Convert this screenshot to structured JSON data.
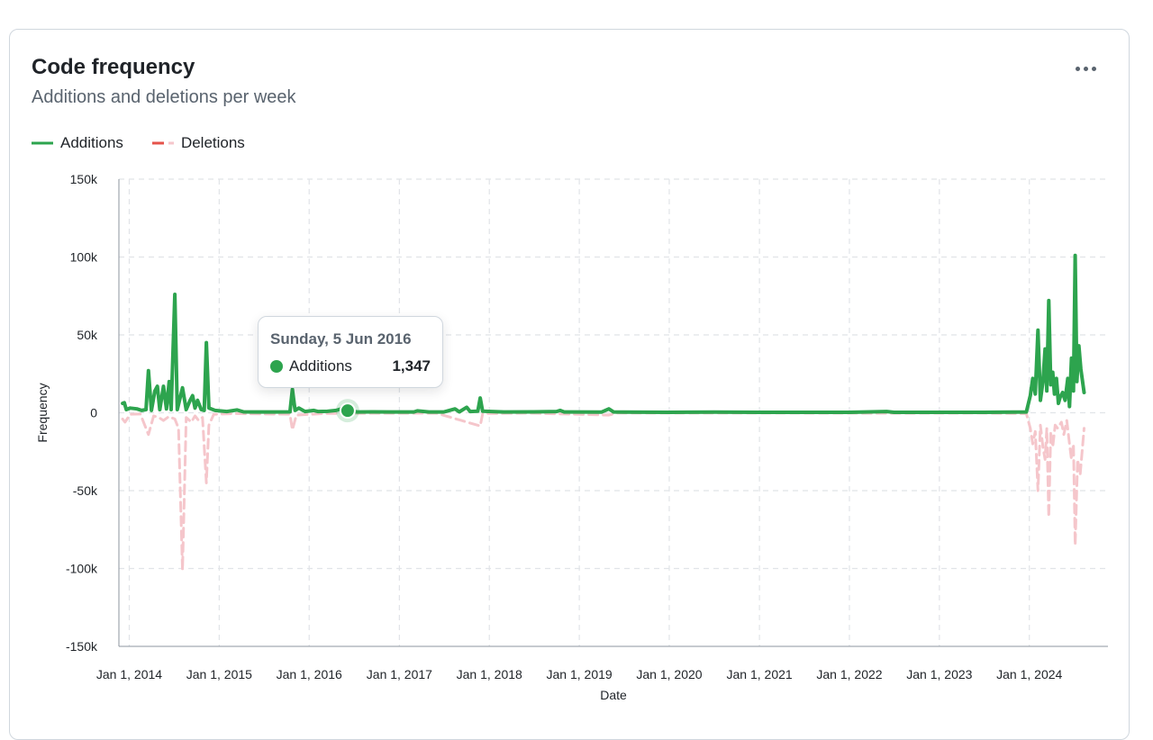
{
  "card": {
    "title": "Code frequency",
    "subtitle": "Additions and deletions per week"
  },
  "menu": {
    "icon": "kebab-horizontal-icon"
  },
  "legend": {
    "additions": "Additions",
    "deletions": "Deletions"
  },
  "colors": {
    "additions": "#2da44e",
    "deletions": "#f5c6cb",
    "deletions_legend": "#e5534b",
    "grid": "#e1e4e8",
    "axis_text": "#1f2328"
  },
  "tooltip": {
    "date": "Sunday, 5 Jun 2016",
    "series": "Additions",
    "value": "1,347"
  },
  "chart_data": {
    "type": "line",
    "xlabel": "Date",
    "ylabel": "Frequency",
    "ylim": [
      -150000,
      150000
    ],
    "xlim": [
      "2013-11-20",
      "2024-11-15"
    ],
    "yticks": [
      150000,
      100000,
      50000,
      0,
      -50000,
      -100000,
      -150000
    ],
    "ytick_labels": [
      "150k",
      "100k",
      "50k",
      "0",
      "-50k",
      "-100k",
      "-150k"
    ],
    "xticks": [
      "2014-01-01",
      "2015-01-01",
      "2016-01-01",
      "2017-01-01",
      "2018-01-01",
      "2019-01-01",
      "2020-01-01",
      "2021-01-01",
      "2022-01-01",
      "2023-01-01",
      "2024-01-01"
    ],
    "xtick_labels": [
      "Jan 1, 2014",
      "Jan 1, 2015",
      "Jan 1, 2016",
      "Jan 1, 2017",
      "Jan 1, 2018",
      "Jan 1, 2019",
      "Jan 1, 2020",
      "Jan 1, 2021",
      "Jan 1, 2022",
      "Jan 1, 2023",
      "Jan 1, 2024"
    ],
    "grid": true,
    "legend_position": "top-left",
    "highlight": {
      "date": "2016-06-05",
      "value": 1347,
      "series": "Additions"
    },
    "series": [
      {
        "name": "Additions",
        "style": "solid",
        "points": [
          [
            "2013-12-05",
            6000
          ],
          [
            "2013-12-12",
            6500
          ],
          [
            "2013-12-20",
            2000
          ],
          [
            "2014-01-05",
            3000
          ],
          [
            "2014-02-01",
            2500
          ],
          [
            "2014-02-20",
            1500
          ],
          [
            "2014-03-10",
            2000
          ],
          [
            "2014-03-20",
            27000
          ],
          [
            "2014-04-01",
            1500
          ],
          [
            "2014-04-15",
            14000
          ],
          [
            "2014-04-25",
            17000
          ],
          [
            "2014-05-05",
            2000
          ],
          [
            "2014-05-20",
            17000
          ],
          [
            "2014-06-01",
            2500
          ],
          [
            "2014-06-12",
            20000
          ],
          [
            "2014-06-20",
            2000
          ],
          [
            "2014-07-05",
            76000
          ],
          [
            "2014-07-15",
            2000
          ],
          [
            "2014-08-05",
            16000
          ],
          [
            "2014-08-20",
            2000
          ],
          [
            "2014-09-05",
            8000
          ],
          [
            "2014-09-15",
            11000
          ],
          [
            "2014-09-25",
            3000
          ],
          [
            "2014-10-05",
            8000
          ],
          [
            "2014-10-20",
            2000
          ],
          [
            "2014-11-01",
            1500
          ],
          [
            "2014-11-10",
            45000
          ],
          [
            "2014-11-20",
            3000
          ],
          [
            "2014-12-15",
            1500
          ],
          [
            "2015-02-01",
            800
          ],
          [
            "2015-03-15",
            1800
          ],
          [
            "2015-04-10",
            600
          ],
          [
            "2015-06-01",
            500
          ],
          [
            "2015-08-15",
            500
          ],
          [
            "2015-10-15",
            600
          ],
          [
            "2015-10-25",
            15000
          ],
          [
            "2015-11-05",
            1500
          ],
          [
            "2015-11-20",
            3000
          ],
          [
            "2015-12-15",
            800
          ],
          [
            "2016-01-20",
            1500
          ],
          [
            "2016-02-05",
            800
          ],
          [
            "2016-03-15",
            900
          ],
          [
            "2016-04-20",
            1500
          ],
          [
            "2016-05-10",
            2500
          ],
          [
            "2016-06-05",
            1347
          ],
          [
            "2016-07-15",
            500
          ],
          [
            "2016-09-15",
            600
          ],
          [
            "2016-12-01",
            500
          ],
          [
            "2017-03-01",
            500
          ],
          [
            "2017-03-15",
            1200
          ],
          [
            "2017-05-01",
            500
          ],
          [
            "2017-07-01",
            500
          ],
          [
            "2017-08-15",
            2500
          ],
          [
            "2017-09-01",
            600
          ],
          [
            "2017-10-01",
            3500
          ],
          [
            "2017-10-15",
            800
          ],
          [
            "2017-11-15",
            1000
          ],
          [
            "2017-11-25",
            9500
          ],
          [
            "2017-12-05",
            1000
          ],
          [
            "2018-03-01",
            500
          ],
          [
            "2018-07-01",
            600
          ],
          [
            "2018-10-01",
            800
          ],
          [
            "2018-10-15",
            1500
          ],
          [
            "2018-11-01",
            500
          ],
          [
            "2019-04-01",
            400
          ],
          [
            "2019-05-01",
            2500
          ],
          [
            "2019-05-20",
            500
          ],
          [
            "2019-07-01",
            400
          ],
          [
            "2020-01-01",
            300
          ],
          [
            "2020-07-01",
            400
          ],
          [
            "2021-01-01",
            300
          ],
          [
            "2021-07-01",
            300
          ],
          [
            "2022-01-01",
            300
          ],
          [
            "2022-06-01",
            800
          ],
          [
            "2022-07-01",
            300
          ],
          [
            "2023-01-01",
            300
          ],
          [
            "2023-07-01",
            300
          ],
          [
            "2023-12-20",
            500
          ],
          [
            "2024-01-05",
            11000
          ],
          [
            "2024-01-15",
            22000
          ],
          [
            "2024-01-25",
            12000
          ],
          [
            "2024-02-05",
            53000
          ],
          [
            "2024-02-15",
            8000
          ],
          [
            "2024-02-25",
            20000
          ],
          [
            "2024-03-05",
            41000
          ],
          [
            "2024-03-12",
            14000
          ],
          [
            "2024-03-20",
            72000
          ],
          [
            "2024-03-28",
            18000
          ],
          [
            "2024-04-05",
            26000
          ],
          [
            "2024-04-12",
            12000
          ],
          [
            "2024-04-20",
            22000
          ],
          [
            "2024-04-28",
            6000
          ],
          [
            "2024-05-05",
            10000
          ],
          [
            "2024-05-15",
            13000
          ],
          [
            "2024-05-25",
            8000
          ],
          [
            "2024-06-05",
            22000
          ],
          [
            "2024-06-12",
            4000
          ],
          [
            "2024-06-20",
            35000
          ],
          [
            "2024-06-28",
            14000
          ],
          [
            "2024-07-05",
            101000
          ],
          [
            "2024-07-12",
            20000
          ],
          [
            "2024-07-20",
            43000
          ],
          [
            "2024-07-28",
            28000
          ],
          [
            "2024-08-10",
            13000
          ]
        ]
      },
      {
        "name": "Deletions",
        "style": "dashed",
        "points": [
          [
            "2013-12-05",
            -4000
          ],
          [
            "2013-12-15",
            -6000
          ],
          [
            "2014-01-05",
            -1000
          ],
          [
            "2014-02-15",
            -800
          ],
          [
            "2014-03-20",
            -14000
          ],
          [
            "2014-04-10",
            -2000
          ],
          [
            "2014-05-01",
            -3000
          ],
          [
            "2014-05-20",
            -5000
          ],
          [
            "2014-06-10",
            -2500
          ],
          [
            "2014-07-05",
            -4000
          ],
          [
            "2014-07-20",
            -10000
          ],
          [
            "2014-08-05",
            -101000
          ],
          [
            "2014-08-20",
            -3000
          ],
          [
            "2014-09-10",
            -6000
          ],
          [
            "2014-09-25",
            -2000
          ],
          [
            "2014-10-10",
            -5000
          ],
          [
            "2014-10-25",
            -3000
          ],
          [
            "2014-11-10",
            -45000
          ],
          [
            "2014-11-20",
            -8000
          ],
          [
            "2014-12-10",
            -1000
          ],
          [
            "2015-03-01",
            -500
          ],
          [
            "2015-10-15",
            -1000
          ],
          [
            "2015-10-25",
            -11000
          ],
          [
            "2015-11-10",
            -1500
          ],
          [
            "2016-03-01",
            -500
          ],
          [
            "2016-06-05",
            -400
          ],
          [
            "2016-10-01",
            -300
          ],
          [
            "2017-06-01",
            -300
          ],
          [
            "2017-11-25",
            -8500
          ],
          [
            "2017-12-05",
            -600
          ],
          [
            "2018-06-01",
            -200
          ],
          [
            "2019-05-01",
            -1500
          ],
          [
            "2019-06-01",
            -200
          ],
          [
            "2020-06-01",
            -200
          ],
          [
            "2021-06-01",
            -200
          ],
          [
            "2022-06-01",
            -300
          ],
          [
            "2023-06-01",
            -200
          ],
          [
            "2023-12-20",
            -500
          ],
          [
            "2024-01-05",
            -10000
          ],
          [
            "2024-01-15",
            -20000
          ],
          [
            "2024-01-25",
            -12000
          ],
          [
            "2024-02-05",
            -50000
          ],
          [
            "2024-02-15",
            -8000
          ],
          [
            "2024-02-25",
            -22000
          ],
          [
            "2024-03-05",
            -30000
          ],
          [
            "2024-03-12",
            -10000
          ],
          [
            "2024-03-20",
            -67000
          ],
          [
            "2024-03-28",
            -12000
          ],
          [
            "2024-04-05",
            -22000
          ],
          [
            "2024-04-15",
            -8000
          ],
          [
            "2024-04-25",
            -10000
          ],
          [
            "2024-05-10",
            -6000
          ],
          [
            "2024-05-20",
            -14000
          ],
          [
            "2024-06-01",
            -5000
          ],
          [
            "2024-06-12",
            -20000
          ],
          [
            "2024-06-20",
            -30000
          ],
          [
            "2024-06-28",
            -20000
          ],
          [
            "2024-07-05",
            -85000
          ],
          [
            "2024-07-15",
            -30000
          ],
          [
            "2024-07-25",
            -40000
          ],
          [
            "2024-08-10",
            -10000
          ]
        ]
      }
    ]
  }
}
